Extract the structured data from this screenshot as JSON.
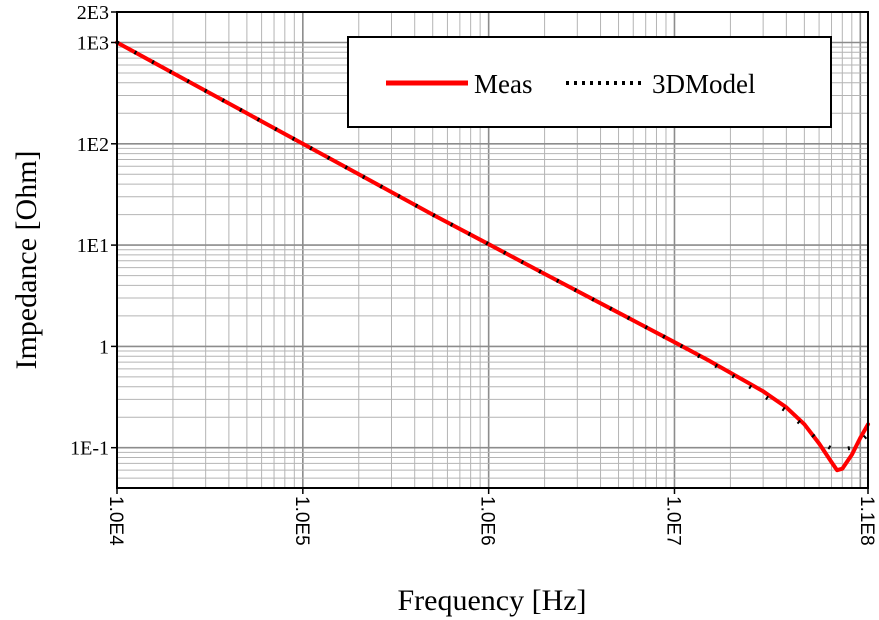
{
  "chart_data": {
    "type": "line",
    "title": "",
    "xlabel": "Frequency [Hz]",
    "ylabel": "Impedance [Ohm]",
    "x_scale": "log",
    "y_scale": "log",
    "xlim": [
      10000,
      110000000
    ],
    "ylim": [
      0.04,
      2000
    ],
    "grid": true,
    "legend_position": "top-right",
    "x_ticks": [
      {
        "value": 10000,
        "label": "1.0E4"
      },
      {
        "value": 100000,
        "label": "1.0E5"
      },
      {
        "value": 1000000,
        "label": "1.0E6"
      },
      {
        "value": 10000000,
        "label": "1.0E7"
      },
      {
        "value": 110000000,
        "label": "1.1E8"
      }
    ],
    "y_ticks": [
      {
        "value": 2000,
        "label": "2E3"
      },
      {
        "value": 1000,
        "label": "1E3"
      },
      {
        "value": 100,
        "label": "1E2"
      },
      {
        "value": 10,
        "label": "1E1"
      },
      {
        "value": 1,
        "label": "1"
      },
      {
        "value": 0.1,
        "label": "1E-1"
      }
    ],
    "series": [
      {
        "name": "Meas",
        "style": "solid",
        "color": "#ff0000",
        "x": [
          10000,
          20000,
          50000,
          100000,
          200000,
          500000,
          1000000,
          2000000,
          5000000,
          10000000,
          15000000,
          20000000,
          30000000,
          40000000,
          50000000,
          60000000,
          70000000,
          75000000,
          80000000,
          90000000,
          100000000,
          110000000
        ],
        "y": [
          1000,
          500,
          200,
          100,
          50,
          20,
          10.2,
          5.2,
          2.15,
          1.1,
          0.74,
          0.55,
          0.36,
          0.25,
          0.17,
          0.11,
          0.072,
          0.06,
          0.062,
          0.085,
          0.125,
          0.17
        ]
      },
      {
        "name": "3DModel",
        "style": "dotted",
        "color": "#000000",
        "x": [
          10000,
          20000,
          50000,
          100000,
          200000,
          500000,
          1000000,
          2000000,
          5000000,
          10000000,
          15000000,
          20000000,
          30000000,
          40000000,
          50000000,
          60000000,
          70000000,
          75000000,
          80000000,
          90000000,
          100000000,
          110000000
        ],
        "y": [
          1000,
          500,
          200,
          100,
          50,
          20,
          10.2,
          5.2,
          2.15,
          1.1,
          0.72,
          0.53,
          0.33,
          0.23,
          0.16,
          0.115,
          0.098,
          0.095,
          0.096,
          0.1,
          0.115,
          0.135
        ]
      }
    ]
  }
}
